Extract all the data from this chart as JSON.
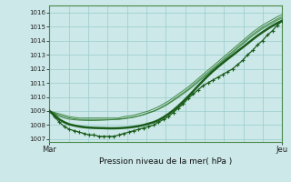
{
  "bg_color": "#cce8e8",
  "grid_color": "#99cccc",
  "marker_color": "#1a5c1a",
  "line_color_main": "#1a5c1a",
  "line_color_thin": "#2d7a2d",
  "title": "Pression niveau de la mer( hPa )",
  "xlabel_left": "Mar",
  "xlabel_right": "Jeu",
  "ymin": 1006.8,
  "ymax": 1016.5,
  "yticks": [
    1007,
    1008,
    1009,
    1010,
    1011,
    1012,
    1013,
    1014,
    1015,
    1016
  ],
  "n_points": 48,
  "series_dotted": [
    1009.0,
    1008.6,
    1008.2,
    1007.9,
    1007.7,
    1007.6,
    1007.5,
    1007.4,
    1007.3,
    1007.3,
    1007.2,
    1007.2,
    1007.2,
    1007.2,
    1007.3,
    1007.4,
    1007.5,
    1007.6,
    1007.7,
    1007.8,
    1007.9,
    1008.0,
    1008.2,
    1008.4,
    1008.6,
    1008.9,
    1009.2,
    1009.5,
    1009.9,
    1010.2,
    1010.5,
    1010.8,
    1011.0,
    1011.2,
    1011.4,
    1011.6,
    1011.8,
    1012.0,
    1012.3,
    1012.6,
    1013.0,
    1013.3,
    1013.7,
    1014.0,
    1014.4,
    1014.7,
    1015.1,
    1015.4
  ],
  "series_straight1": [
    1009.0,
    1008.9,
    1008.8,
    1008.7,
    1008.6,
    1008.55,
    1008.5,
    1008.5,
    1008.5,
    1008.5,
    1008.5,
    1008.5,
    1008.5,
    1008.5,
    1008.5,
    1008.6,
    1008.65,
    1008.7,
    1008.8,
    1008.9,
    1009.0,
    1009.15,
    1009.3,
    1009.5,
    1009.7,
    1009.95,
    1010.2,
    1010.45,
    1010.7,
    1011.0,
    1011.3,
    1011.6,
    1011.9,
    1012.2,
    1012.5,
    1012.8,
    1013.1,
    1013.4,
    1013.7,
    1014.0,
    1014.3,
    1014.6,
    1014.85,
    1015.1,
    1015.3,
    1015.5,
    1015.7,
    1015.85
  ],
  "series_straight2": [
    1009.0,
    1008.85,
    1008.7,
    1008.6,
    1008.5,
    1008.45,
    1008.4,
    1008.4,
    1008.4,
    1008.4,
    1008.4,
    1008.4,
    1008.4,
    1008.4,
    1008.4,
    1008.45,
    1008.5,
    1008.55,
    1008.65,
    1008.75,
    1008.88,
    1009.0,
    1009.15,
    1009.35,
    1009.55,
    1009.8,
    1010.05,
    1010.3,
    1010.55,
    1010.85,
    1011.15,
    1011.45,
    1011.75,
    1012.05,
    1012.35,
    1012.65,
    1012.95,
    1013.25,
    1013.55,
    1013.85,
    1014.15,
    1014.45,
    1014.7,
    1014.95,
    1015.15,
    1015.35,
    1015.55,
    1015.7
  ],
  "series_straight3": [
    1009.0,
    1008.8,
    1008.62,
    1008.5,
    1008.42,
    1008.38,
    1008.35,
    1008.33,
    1008.32,
    1008.32,
    1008.33,
    1008.35,
    1008.37,
    1008.4,
    1008.43,
    1008.47,
    1008.52,
    1008.58,
    1008.65,
    1008.73,
    1008.85,
    1008.97,
    1009.12,
    1009.3,
    1009.5,
    1009.73,
    1009.97,
    1010.22,
    1010.47,
    1010.75,
    1011.05,
    1011.35,
    1011.65,
    1011.95,
    1012.25,
    1012.55,
    1012.85,
    1013.15,
    1013.45,
    1013.75,
    1014.05,
    1014.35,
    1014.6,
    1014.85,
    1015.05,
    1015.25,
    1015.45,
    1015.6
  ],
  "series_bold": [
    1009.0,
    1008.7,
    1008.4,
    1008.2,
    1008.05,
    1007.97,
    1007.9,
    1007.85,
    1007.82,
    1007.8,
    1007.79,
    1007.78,
    1007.77,
    1007.77,
    1007.78,
    1007.8,
    1007.83,
    1007.87,
    1007.93,
    1008.0,
    1008.1,
    1008.2,
    1008.35,
    1008.55,
    1008.78,
    1009.05,
    1009.35,
    1009.68,
    1010.03,
    1010.4,
    1010.78,
    1011.15,
    1011.5,
    1011.83,
    1012.13,
    1012.42,
    1012.7,
    1012.97,
    1013.25,
    1013.52,
    1013.8,
    1014.08,
    1014.35,
    1014.6,
    1014.83,
    1015.05,
    1015.25,
    1015.42
  ]
}
